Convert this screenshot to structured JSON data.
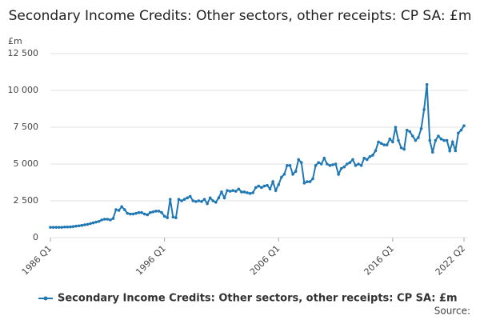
{
  "chart_data": {
    "type": "line",
    "title": "Secondary Income Credits: Other sectors, other receipts: CP SA: £m",
    "y_unit": "£m",
    "source": "Source:",
    "categories": [
      "1986 Q1",
      null,
      null,
      null,
      null,
      null,
      null,
      null,
      null,
      null,
      null,
      null,
      null,
      null,
      null,
      null,
      null,
      null,
      null,
      null,
      null,
      null,
      null,
      null,
      null,
      null,
      null,
      null,
      null,
      null,
      null,
      null,
      null,
      null,
      null,
      null,
      null,
      null,
      null,
      null,
      "1996 Q1",
      null,
      null,
      null,
      null,
      null,
      null,
      null,
      null,
      null,
      null,
      null,
      null,
      null,
      null,
      null,
      null,
      null,
      null,
      null,
      null,
      null,
      null,
      null,
      null,
      null,
      null,
      null,
      null,
      null,
      null,
      null,
      null,
      null,
      null,
      null,
      null,
      null,
      null,
      null,
      "2006 Q1",
      null,
      null,
      null,
      null,
      null,
      null,
      null,
      null,
      null,
      null,
      null,
      null,
      null,
      null,
      null,
      null,
      null,
      null,
      null,
      null,
      null,
      null,
      null,
      null,
      null,
      null,
      null,
      null,
      null,
      null,
      null,
      null,
      null,
      null,
      null,
      null,
      null,
      null,
      null,
      "2016 Q1",
      null,
      null,
      null,
      null,
      null,
      null,
      null,
      null,
      null,
      null,
      null,
      null,
      null,
      null,
      null,
      null,
      null,
      null,
      null,
      null,
      null,
      null,
      null,
      null,
      "2022 Q2"
    ],
    "series": [
      {
        "name": "Secondary Income Credits: Other sectors, other receipts: CP SA: £m",
        "color": "#1f78b4",
        "values": [
          700,
          700,
          700,
          700,
          700,
          720,
          720,
          730,
          750,
          780,
          800,
          830,
          870,
          900,
          950,
          1000,
          1050,
          1100,
          1200,
          1250,
          1250,
          1200,
          1300,
          1900,
          1850,
          2100,
          1900,
          1650,
          1600,
          1600,
          1650,
          1700,
          1700,
          1600,
          1550,
          1700,
          1750,
          1800,
          1800,
          1700,
          1450,
          1350,
          2600,
          1400,
          1350,
          2600,
          2500,
          2600,
          2700,
          2800,
          2500,
          2450,
          2500,
          2450,
          2600,
          2300,
          2700,
          2500,
          2400,
          2700,
          3100,
          2700,
          3200,
          3150,
          3200,
          3150,
          3300,
          3100,
          3100,
          3050,
          3000,
          3050,
          3400,
          3500,
          3400,
          3500,
          3550,
          3300,
          3800,
          3200,
          3600,
          4100,
          4300,
          4900,
          4900,
          4300,
          4500,
          5300,
          5100,
          3700,
          3800,
          3800,
          4000,
          4900,
          5100,
          5000,
          5400,
          5000,
          4900,
          4950,
          5000,
          4300,
          4700,
          4800,
          5000,
          5100,
          5300,
          4900,
          5000,
          4900,
          5400,
          5300,
          5500,
          5600,
          5900,
          6500,
          6400,
          6300,
          6300,
          6700,
          6500,
          7500,
          6600,
          6100,
          6000,
          7300,
          7200,
          6900,
          6600,
          6800,
          7400,
          8700,
          10400,
          6600,
          5800,
          6600,
          6900,
          6700,
          6600,
          6600,
          5900,
          6500,
          5900,
          7100,
          7300,
          7600
        ]
      }
    ],
    "ylim": [
      0,
      12500
    ],
    "yticks": [
      0,
      {
        "value": 2500,
        "label": "2 500"
      },
      {
        "value": 5000,
        "label": "5 000"
      },
      {
        "value": 7500,
        "label": "7 500"
      },
      {
        "value": 10000,
        "label": "10 000"
      },
      {
        "value": 12500,
        "label": "12 500"
      }
    ],
    "grid": true,
    "legend": "bottom"
  }
}
